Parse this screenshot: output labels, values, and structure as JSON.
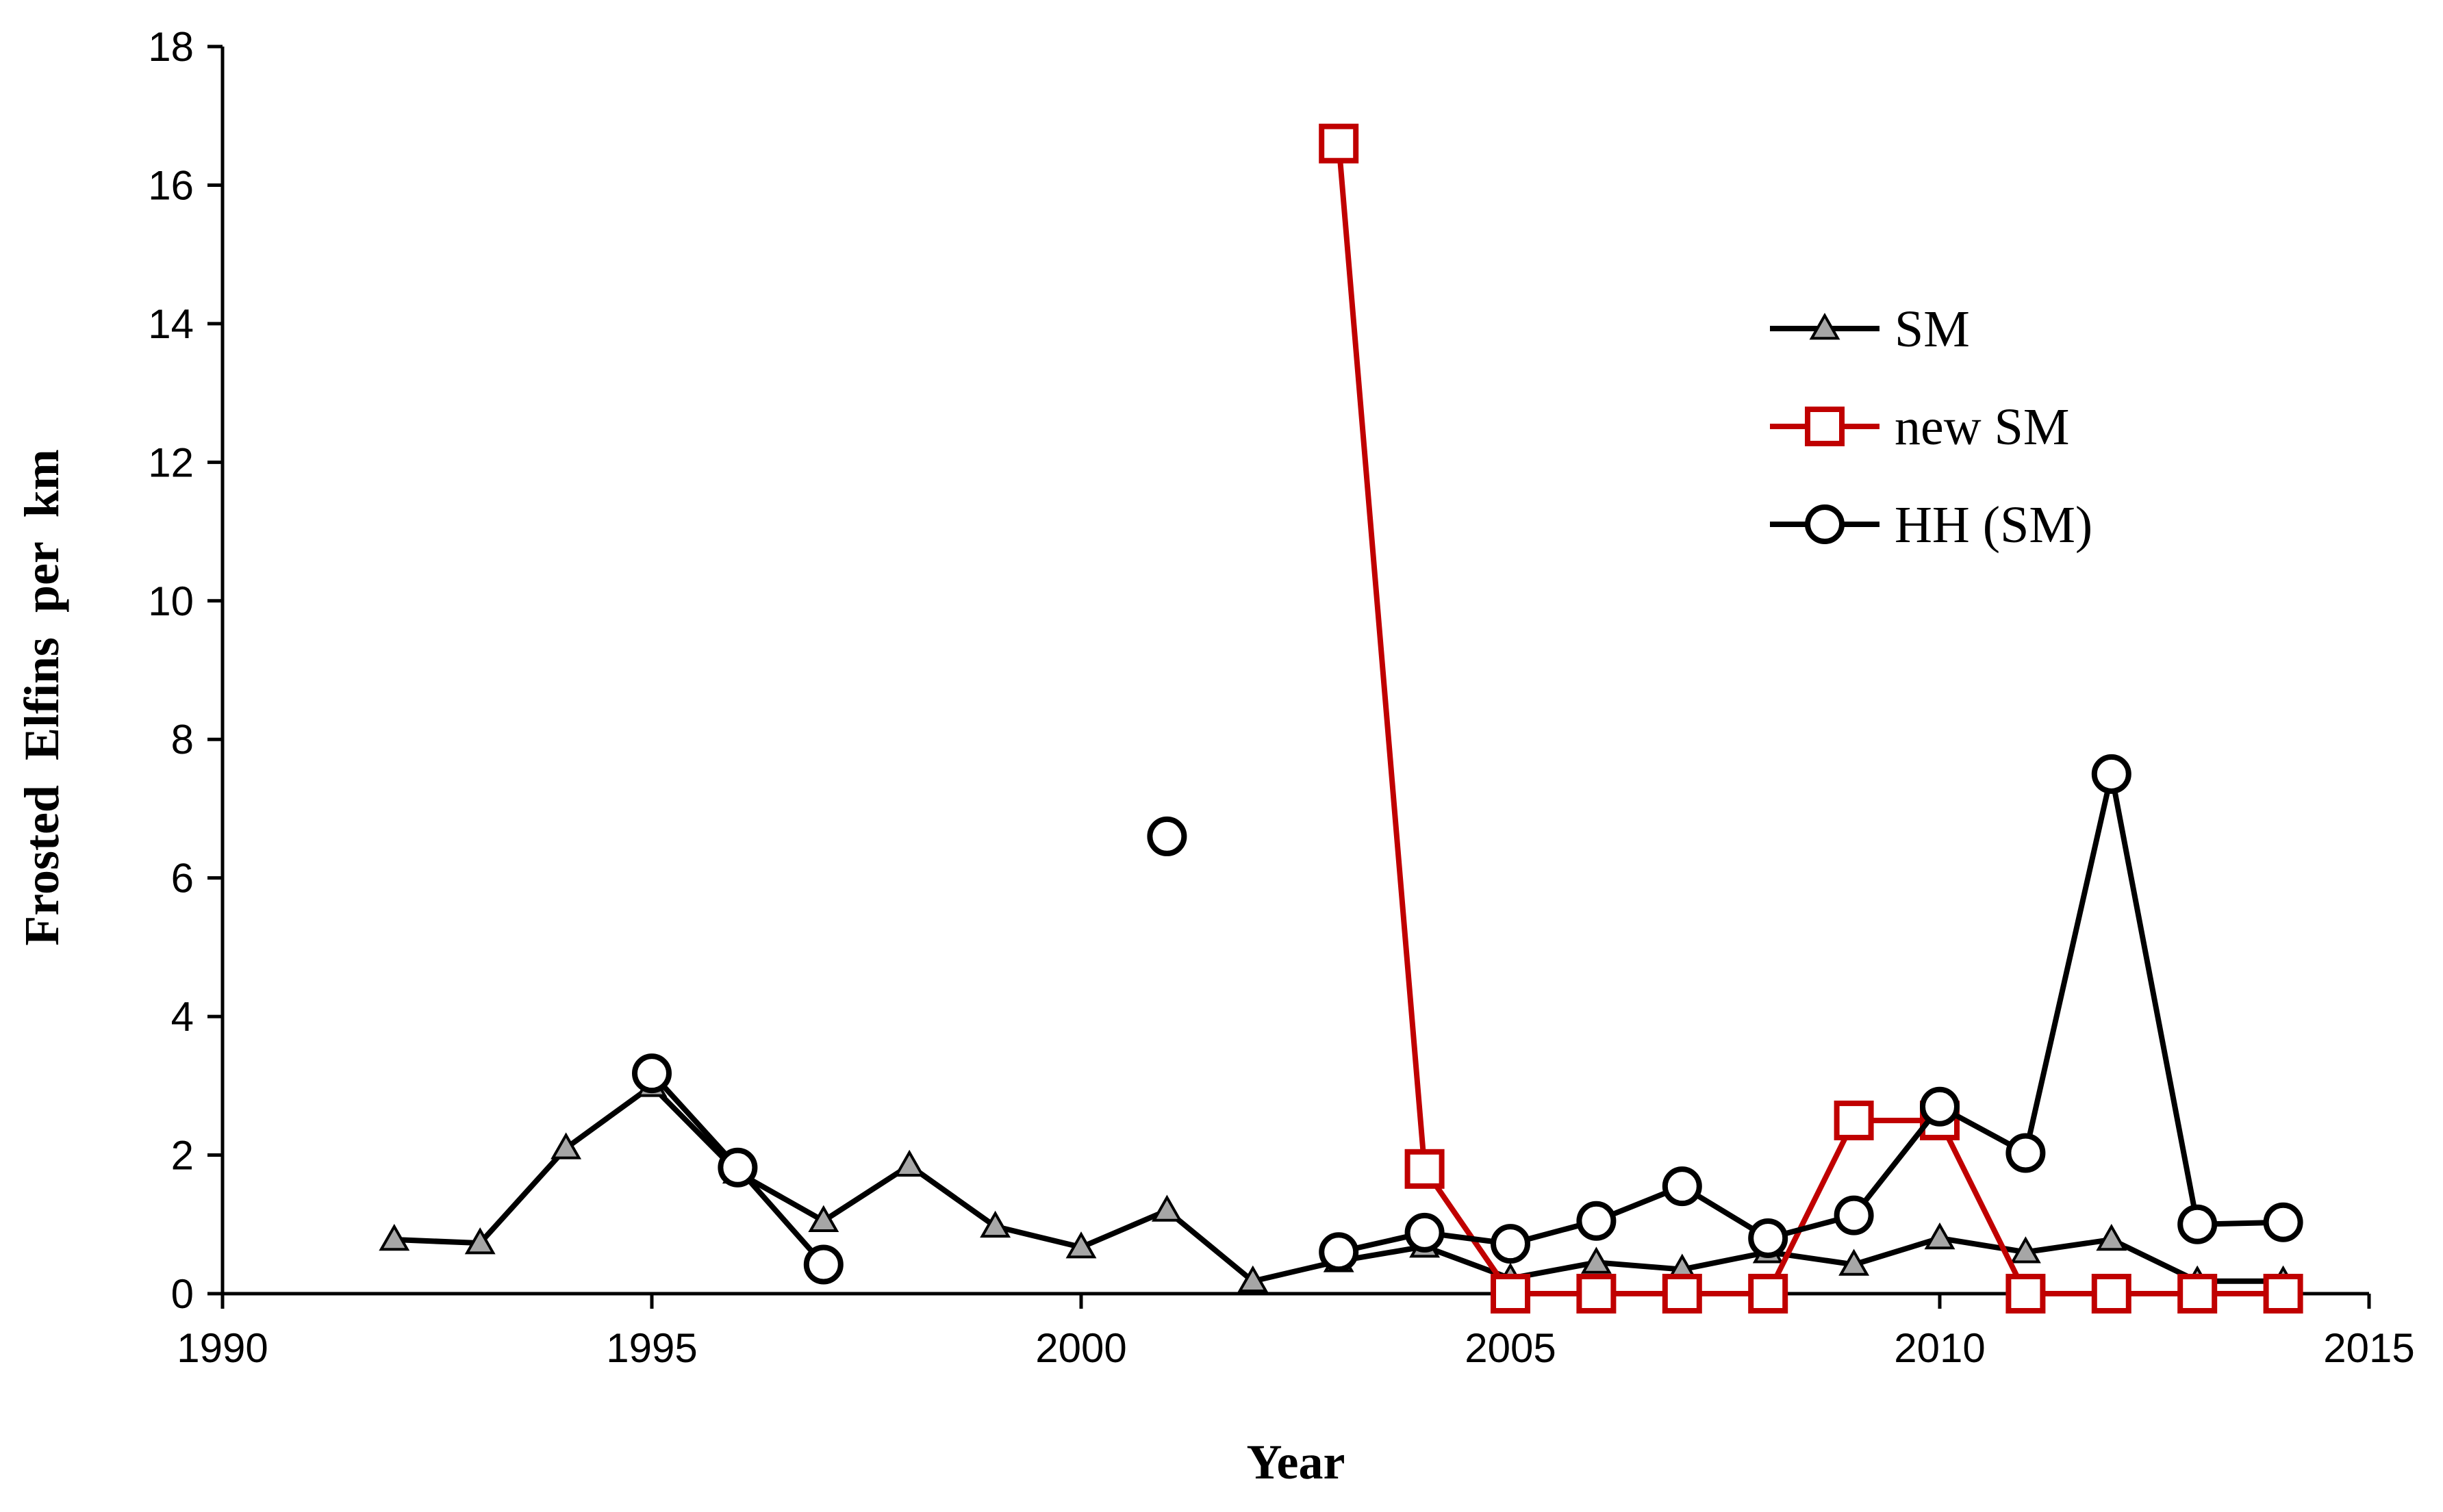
{
  "chart_data": {
    "type": "line",
    "title": "",
    "xlabel": "Year",
    "ylabel": "Frosted  Elfins  per  km",
    "xlim": [
      1990,
      2015
    ],
    "ylim": [
      0,
      18
    ],
    "x_ticks": [
      1990,
      1995,
      2000,
      2005,
      2010,
      2015
    ],
    "y_ticks": [
      0,
      2,
      4,
      6,
      8,
      10,
      12,
      14,
      16,
      18
    ],
    "grid": false,
    "legend_position": "upper right",
    "series": [
      {
        "name": "SM",
        "color": "#000000",
        "marker": "triangle",
        "marker_fill": "#a6a6a6",
        "points": [
          [
            1992,
            0.78
          ],
          [
            1993,
            0.73
          ],
          [
            1994,
            2.1
          ],
          [
            1995,
            3.0
          ],
          [
            1996,
            1.75
          ],
          [
            1997,
            1.05
          ],
          [
            1998,
            1.85
          ],
          [
            1999,
            0.97
          ],
          [
            2000,
            0.67
          ],
          [
            2001,
            1.2
          ],
          [
            2002,
            0.18
          ],
          [
            2003,
            0.47
          ],
          [
            2004,
            0.68
          ],
          [
            2005,
            0.22
          ],
          [
            2006,
            0.45
          ],
          [
            2007,
            0.35
          ],
          [
            2008,
            0.6
          ],
          [
            2009,
            0.42
          ],
          [
            2010,
            0.8
          ],
          [
            2011,
            0.6
          ],
          [
            2012,
            0.78
          ],
          [
            2013,
            0.18
          ],
          [
            2014,
            0.18
          ]
        ]
      },
      {
        "name": "new SM",
        "color": "#c00000",
        "marker": "square",
        "marker_fill": "#ffffff",
        "points": [
          [
            2003,
            16.6
          ],
          [
            2004,
            1.8
          ],
          [
            2005,
            0
          ],
          [
            2006,
            0
          ],
          [
            2007,
            0
          ],
          [
            2008,
            0
          ],
          [
            2009,
            2.5
          ],
          [
            2010,
            2.5
          ],
          [
            2011,
            0
          ],
          [
            2012,
            0
          ],
          [
            2013,
            0
          ],
          [
            2014,
            0
          ]
        ]
      },
      {
        "name": "HH (SM)",
        "color": "#000000",
        "marker": "circle",
        "marker_fill": "#ffffff",
        "points": [
          [
            1995,
            3.18
          ],
          [
            1996,
            1.82
          ],
          [
            1997,
            0.42
          ],
          [
            2001,
            6.6
          ],
          [
            2003,
            0.6
          ],
          [
            2004,
            0.88
          ],
          [
            2005,
            0.72
          ],
          [
            2006,
            1.05
          ],
          [
            2007,
            1.55
          ],
          [
            2008,
            0.8
          ],
          [
            2009,
            1.13
          ],
          [
            2010,
            2.7
          ],
          [
            2011,
            2.03
          ],
          [
            2012,
            7.5
          ],
          [
            2013,
            1.0
          ],
          [
            2014,
            1.03
          ]
        ]
      }
    ]
  }
}
